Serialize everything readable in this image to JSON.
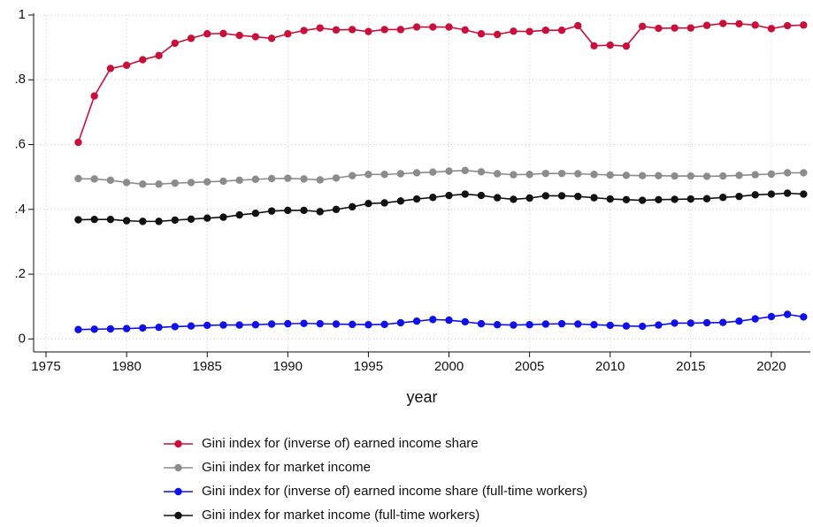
{
  "chart_data": {
    "type": "line",
    "x_label": "year",
    "x": [
      1977,
      1978,
      1979,
      1980,
      1981,
      1982,
      1983,
      1984,
      1985,
      1986,
      1987,
      1988,
      1989,
      1990,
      1991,
      1992,
      1993,
      1994,
      1995,
      1996,
      1997,
      1998,
      1999,
      2000,
      2001,
      2002,
      2003,
      2004,
      2005,
      2006,
      2007,
      2008,
      2009,
      2010,
      2011,
      2012,
      2013,
      2014,
      2015,
      2016,
      2017,
      2018,
      2019,
      2020,
      2021,
      2022
    ],
    "xlim": [
      1974.23,
      2022.42
    ],
    "xticks": [
      1975,
      1980,
      1985,
      1990,
      1995,
      2000,
      2005,
      2010,
      2015,
      2020
    ],
    "ylim": [
      -0.04,
      1
    ],
    "yticks": [
      0,
      {
        "value": 0.2,
        "label": ".2"
      },
      {
        "value": 0.4,
        "label": ".4"
      },
      {
        "value": 0.6,
        "label": ".6"
      },
      {
        "value": 0.8,
        "label": ".8"
      },
      1
    ],
    "grid": true,
    "legend": "bottom",
    "series": [
      {
        "name": "Gini index for (inverse of) earned income share",
        "color": "#c8103a",
        "values": [
          0.607,
          0.75,
          0.835,
          0.845,
          0.862,
          0.875,
          0.913,
          0.928,
          0.942,
          0.943,
          0.937,
          0.933,
          0.928,
          0.942,
          0.952,
          0.96,
          0.954,
          0.955,
          0.949,
          0.955,
          0.955,
          0.963,
          0.963,
          0.963,
          0.954,
          0.942,
          0.94,
          0.95,
          0.949,
          0.953,
          0.953,
          0.967,
          0.905,
          0.907,
          0.904,
          0.965,
          0.959,
          0.96,
          0.96,
          0.968,
          0.974,
          0.973,
          0.969,
          0.958,
          0.967,
          0.969
        ]
      },
      {
        "name": "Gini index for market income",
        "color": "#8c8c8c",
        "values": [
          0.495,
          0.494,
          0.49,
          0.483,
          0.478,
          0.478,
          0.481,
          0.483,
          0.485,
          0.487,
          0.49,
          0.493,
          0.495,
          0.496,
          0.494,
          0.491,
          0.497,
          0.504,
          0.508,
          0.508,
          0.51,
          0.513,
          0.515,
          0.518,
          0.52,
          0.516,
          0.51,
          0.507,
          0.508,
          0.511,
          0.511,
          0.51,
          0.508,
          0.506,
          0.505,
          0.504,
          0.504,
          0.503,
          0.503,
          0.502,
          0.503,
          0.505,
          0.507,
          0.509,
          0.513,
          0.513
        ]
      },
      {
        "name": "Gini index for (inverse of) earned income share (full-time workers)",
        "color": "#1010e8",
        "values": [
          0.029,
          0.03,
          0.031,
          0.032,
          0.034,
          0.036,
          0.038,
          0.04,
          0.042,
          0.043,
          0.043,
          0.044,
          0.046,
          0.047,
          0.048,
          0.047,
          0.046,
          0.045,
          0.044,
          0.045,
          0.05,
          0.055,
          0.06,
          0.058,
          0.053,
          0.047,
          0.044,
          0.043,
          0.044,
          0.046,
          0.047,
          0.046,
          0.044,
          0.042,
          0.04,
          0.039,
          0.043,
          0.049,
          0.049,
          0.05,
          0.051,
          0.055,
          0.062,
          0.069,
          0.076,
          0.068
        ]
      },
      {
        "name": "Gini index for market income (full-time workers)",
        "color": "#111111",
        "values": [
          0.368,
          0.369,
          0.369,
          0.365,
          0.363,
          0.363,
          0.367,
          0.37,
          0.373,
          0.376,
          0.383,
          0.388,
          0.395,
          0.397,
          0.397,
          0.393,
          0.4,
          0.408,
          0.418,
          0.42,
          0.426,
          0.432,
          0.437,
          0.443,
          0.447,
          0.443,
          0.436,
          0.431,
          0.435,
          0.442,
          0.442,
          0.44,
          0.436,
          0.432,
          0.43,
          0.428,
          0.43,
          0.431,
          0.432,
          0.433,
          0.437,
          0.44,
          0.445,
          0.447,
          0.45,
          0.447
        ]
      }
    ]
  }
}
